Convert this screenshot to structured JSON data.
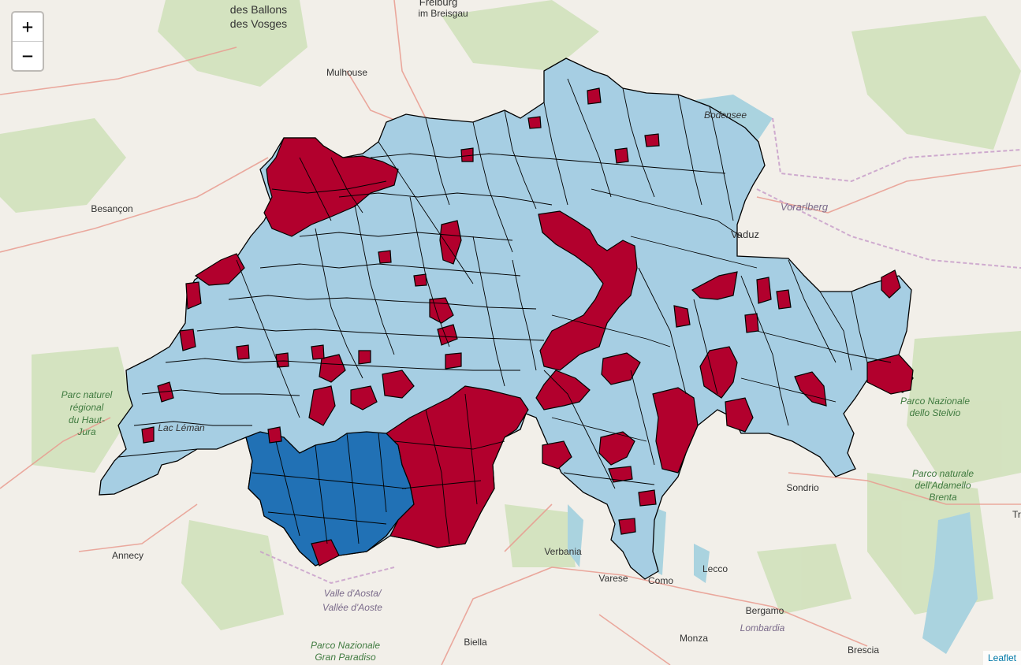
{
  "colors": {
    "land": "#f2efe9",
    "forest": "#cfe0b8",
    "water": "#aad3df",
    "road": "#e99b8f",
    "region_light": "#a6cee3",
    "region_red": "#b2002d",
    "region_dark": "#2171b5",
    "border": "#000000"
  },
  "zoom_control": {
    "zoom_in": "+",
    "zoom_out": "−"
  },
  "attribution": "Leaflet",
  "labels": {
    "ballons_1": "des Ballons",
    "ballons_2": "des Vosges",
    "freiburg_1": "Freiburg",
    "freiburg_2": "im Breisgau",
    "mulhouse": "Mulhouse",
    "besancon": "Besançon",
    "bodensee": "Bodensee",
    "vorarlberg": "Vorarlberg",
    "vaduz": "Vaduz",
    "lac_leman": "Lac Léman",
    "jura_1": "Parc naturel",
    "jura_2": "régional",
    "jura_3": "du Haut-",
    "jura_4": "Jura",
    "stelvio_1": "Parco Nazionale",
    "stelvio_2": "dello Stelvio",
    "adamello_1": "Parco naturale",
    "adamello_2": "dell'Adamello",
    "adamello_3": "Brenta",
    "sondrio": "Sondrio",
    "annecy": "Annecy",
    "verbania": "Verbania",
    "varese": "Varese",
    "como": "Como",
    "lecco": "Lecco",
    "bergamo": "Bergamo",
    "lombardia": "Lombardia",
    "aosta_1": "Valle d'Aosta/",
    "aosta_2": "Vallée d'Aoste",
    "paradiso_1": "Parco Nazionale",
    "paradiso_2": "Gran Paradiso",
    "biella": "Biella",
    "monza": "Monza",
    "brescia": "Brescia",
    "tirano": "Tr"
  }
}
